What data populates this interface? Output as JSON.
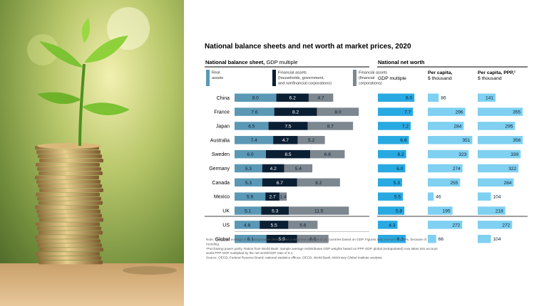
{
  "photo": {
    "icon": "seedling-on-coin-stack-photo"
  },
  "chart_data": {
    "type": "bar",
    "title": "National balance sheets and net worth at market prices, 2020",
    "left_panel": {
      "header_main": "National balance sheet,",
      "header_sub": " GDP multiple",
      "legend": [
        {
          "name": "Real assets",
          "lines": [
            "Real",
            "assets"
          ],
          "color": "#5b98b5"
        },
        {
          "name": "Financial assets (households, government, and nonfinancial corporations)",
          "lines": [
            "Financial assets",
            "(households, government,",
            "and nonfinancial corporations)"
          ],
          "color": "#0b1f33"
        },
        {
          "name": "Financial assets (financial corporations)",
          "lines": [
            "Financial assets",
            "(financial",
            "corporations)"
          ],
          "color": "#7d8790"
        }
      ],
      "categories": [
        "China",
        "France",
        "Japan",
        "Australia",
        "Sweden",
        "Germany",
        "Canada",
        "Mexico",
        "UK",
        "US",
        "Global"
      ],
      "series": [
        {
          "name": "Real assets",
          "values": [
            8.0,
            7.6,
            6.5,
            7.4,
            6.0,
            5.3,
            5.3,
            5.9,
            5.1,
            4.8,
            6.1
          ]
        },
        {
          "name": "Financial assets (households, government, and nonfinancial corporations)",
          "values": [
            6.2,
            8.2,
            7.5,
            4.7,
            8.5,
            4.2,
            6.7,
            2.7,
            5.3,
            5.5,
            5.9
          ]
        },
        {
          "name": "Financial assets (financial corporations)",
          "values": [
            4.7,
            8.0,
            8.7,
            5.2,
            6.6,
            5.4,
            8.2,
            1.4,
            11.5,
            5.6,
            6.0
          ]
        }
      ],
      "labels": [
        [
          "8.0",
          "6.2",
          "4.7"
        ],
        [
          "7.6",
          "8.2",
          "8.0"
        ],
        [
          "6.5",
          "7.5",
          "8.7"
        ],
        [
          "7.4",
          "4.7",
          "5.2"
        ],
        [
          "6.0",
          "8.5",
          "6.6"
        ],
        [
          "5.3",
          "4.2",
          "5.4"
        ],
        [
          "5.3",
          "6.7",
          "8.2"
        ],
        [
          "5.9",
          "2.7",
          "1.4"
        ],
        [
          "5.1",
          "5.3",
          "11.5"
        ],
        [
          "4.8",
          "5.5",
          "5.6"
        ],
        [
          "6.1",
          "5.9",
          "6.0"
        ]
      ]
    },
    "right_panel": {
      "header": "National net worth",
      "columns": [
        {
          "lines": [
            "GDP multiple"
          ],
          "values": [
            8.0,
            7.7,
            7.2,
            6.8,
            6.2,
            6.0,
            5.3,
            5.5,
            5.8,
            4.3,
            6.1
          ],
          "labels": [
            "8.0",
            "7.7",
            "7.2",
            "6.8",
            "6.2",
            "6.0",
            "5.3",
            "5.5",
            "5.8",
            "4.3",
            "6.1"
          ],
          "max": 10,
          "color": "#29a9e1"
        },
        {
          "lines": [
            "Per capita,",
            "$ thousand"
          ],
          "values": [
            86,
            296,
            284,
            351,
            323,
            274,
            255,
            46,
            195,
            272,
            66
          ],
          "labels": [
            "86",
            "296",
            "284",
            "351",
            "323",
            "274",
            "255",
            "46",
            "195",
            "272",
            "66"
          ],
          "max": 360,
          "color": "#7fd0f1"
        },
        {
          "lines": [
            "Per capita, PPP,¹",
            "$ thousand"
          ],
          "values": [
            141,
            355,
            295,
            356,
            339,
            322,
            284,
            104,
            218,
            272,
            104
          ],
          "labels": [
            "141",
            "355",
            "295",
            "356",
            "339",
            "322",
            "284",
            "104",
            "218",
            "272",
            "104"
          ],
          "max": 360,
          "color": "#7fd0f1"
        }
      ]
    },
    "footnotes": [
      "Note: The global average is an extrapolation derived from a weighted average of 10 countries based on GDP. Figures may not sum to 100%, because of",
      "rounding.",
      "¹Purchasing power parity. Ratios from World Bank; sample average redistributes GDP weights based on PPP GDP, global (extrapolated) now takes into account",
      "world PPP GDP multiplied by the net worth/GDP ratio of 6.1.",
      "Source: OECD; Federal Reserve Board; national statistics offices; OECD; World Bank; McKinsey Global Institute analysis"
    ]
  }
}
